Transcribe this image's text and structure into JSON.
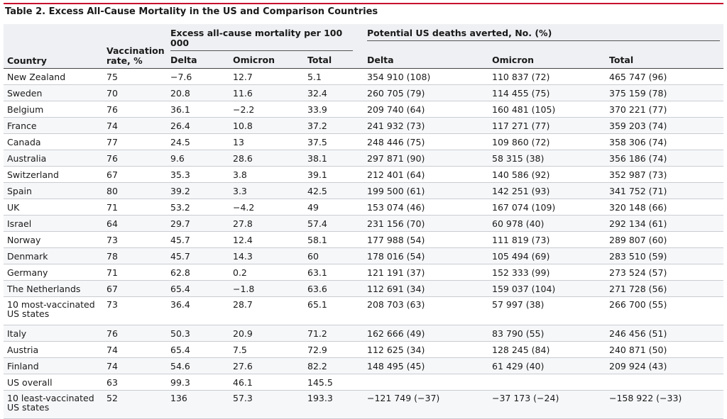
{
  "title": "Table 2. Excess All-Cause Mortality in the US and Comparison Countries",
  "table": {
    "header": {
      "country": "Country",
      "vaccination": "Vaccination rate, %",
      "group1": "Excess all-cause mortality per 100 000",
      "group2": "Potential US deaths averted, No. (%)",
      "sub": [
        "Delta",
        "Omicron",
        "Total",
        "Delta",
        "Omicron",
        "Total"
      ]
    },
    "rows": [
      [
        "New Zealand",
        "75",
        "−7.6",
        "12.7",
        "5.1",
        "354 910 (108)",
        "110 837 (72)",
        "465 747 (96)"
      ],
      [
        "Sweden",
        "70",
        "20.8",
        "11.6",
        "32.4",
        "260 705 (79)",
        "114 455 (75)",
        "375 159 (78)"
      ],
      [
        "Belgium",
        "76",
        "36.1",
        "−2.2",
        "33.9",
        "209 740 (64)",
        "160 481 (105)",
        "370 221 (77)"
      ],
      [
        "France",
        "74",
        "26.4",
        "10.8",
        "37.2",
        "241 932 (73)",
        "117 271 (77)",
        "359 203 (74)"
      ],
      [
        "Canada",
        "77",
        "24.5",
        "13",
        "37.5",
        "248 446 (75)",
        "109 860 (72)",
        "358 306 (74)"
      ],
      [
        "Australia",
        "76",
        "9.6",
        "28.6",
        "38.1",
        "297 871 (90)",
        "58 315 (38)",
        "356 186 (74)"
      ],
      [
        "Switzerland",
        "67",
        "35.3",
        "3.8",
        "39.1",
        "212 401 (64)",
        "140 586 (92)",
        "352 987 (73)"
      ],
      [
        "Spain",
        "80",
        "39.2",
        "3.3",
        "42.5",
        "199 500 (61)",
        "142 251 (93)",
        "341 752 (71)"
      ],
      [
        "UK",
        "71",
        "53.2",
        "−4.2",
        "49",
        "153 074 (46)",
        "167 074 (109)",
        "320 148 (66)"
      ],
      [
        "Israel",
        "64",
        "29.7",
        "27.8",
        "57.4",
        "231 156 (70)",
        "60 978 (40)",
        "292 134 (61)"
      ],
      [
        "Norway",
        "73",
        "45.7",
        "12.4",
        "58.1",
        "177 988 (54)",
        "111 819 (73)",
        "289 807 (60)"
      ],
      [
        "Denmark",
        "78",
        "45.7",
        "14.3",
        "60",
        "178 016 (54)",
        "105 494 (69)",
        "283 510 (59)"
      ],
      [
        "Germany",
        "71",
        "62.8",
        "0.2",
        "63.1",
        "121 191 (37)",
        "152 333 (99)",
        "273 524 (57)"
      ],
      [
        "The Netherlands",
        "67",
        "65.4",
        "−1.8",
        "63.6",
        "112 691 (34)",
        "159 037 (104)",
        "271 728 (56)"
      ],
      [
        "10 most-vaccinated US states",
        "73",
        "36.4",
        "28.7",
        "65.1",
        "208 703 (63)",
        "57 997 (38)",
        "266 700 (55)"
      ],
      [
        "Italy",
        "76",
        "50.3",
        "20.9",
        "71.2",
        "162 666 (49)",
        "83 790 (55)",
        "246 456 (51)"
      ],
      [
        "Austria",
        "74",
        "65.4",
        "7.5",
        "72.9",
        "112 625 (34)",
        "128 245 (84)",
        "240 871 (50)"
      ],
      [
        "Finland",
        "74",
        "54.6",
        "27.6",
        "82.2",
        "148 495 (45)",
        "61 429 (40)",
        "209 924 (43)"
      ],
      [
        "US overall",
        "63",
        "99.3",
        "46.1",
        "145.5",
        null,
        null,
        null
      ],
      [
        "10 least-vaccinated US states",
        "52",
        "136",
        "57.3",
        "193.3",
        "−121 749 (−37)",
        "−37 173 (−24)",
        "−158 922 (−33)"
      ]
    ]
  }
}
